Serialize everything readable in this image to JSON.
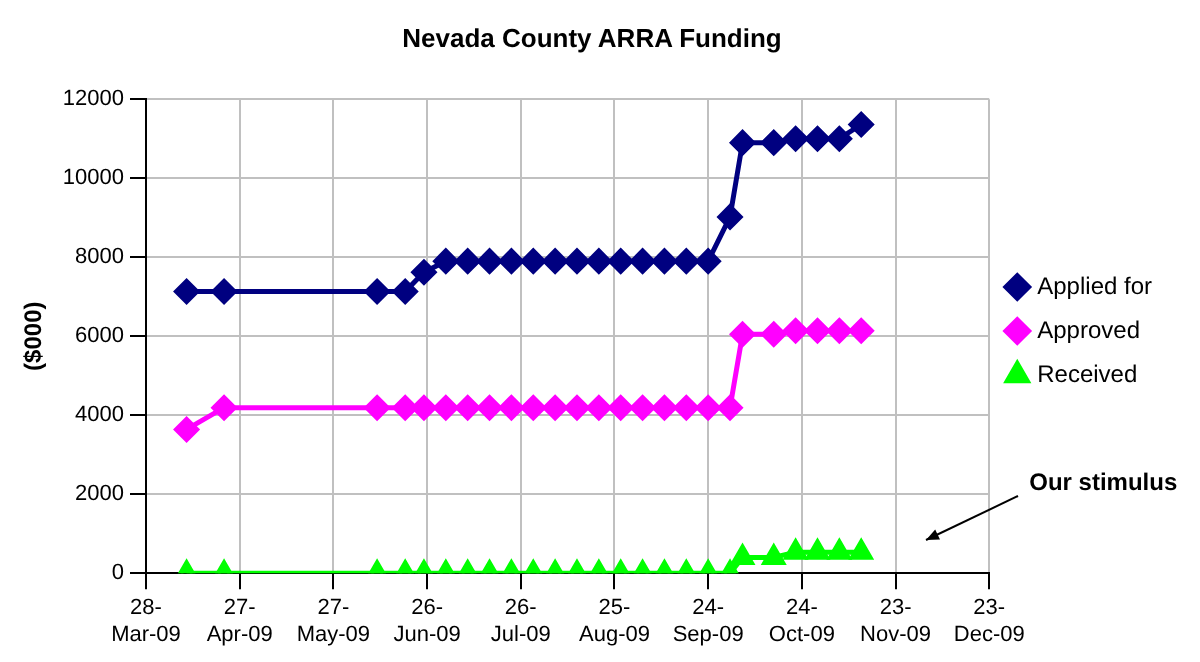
{
  "chart_data": {
    "type": "line",
    "title": "Nevada County ARRA Funding",
    "ylabel": "($000)",
    "x": [
      "2009-04-10",
      "2009-04-22",
      "2009-06-10",
      "2009-06-19",
      "2009-06-25",
      "2009-07-02",
      "2009-07-09",
      "2009-07-16",
      "2009-07-23",
      "2009-07-30",
      "2009-08-06",
      "2009-08-13",
      "2009-08-20",
      "2009-08-27",
      "2009-09-03",
      "2009-09-10",
      "2009-09-17",
      "2009-09-24",
      "2009-10-01",
      "2009-10-05",
      "2009-10-15",
      "2009-10-22",
      "2009-10-29",
      "2009-11-05",
      "2009-11-12"
    ],
    "series": [
      {
        "name": "Applied for",
        "color": "#000080",
        "marker": "diamond",
        "values": [
          7130,
          7130,
          7130,
          7130,
          7620,
          7900,
          7900,
          7900,
          7900,
          7900,
          7900,
          7900,
          7900,
          7900,
          7900,
          7900,
          7900,
          7900,
          9020,
          10900,
          10900,
          11000,
          11000,
          11000,
          11360
        ]
      },
      {
        "name": "Approved",
        "color": "#ff00ff",
        "marker": "diamond",
        "values": [
          3640,
          4190,
          4190,
          4190,
          4190,
          4190,
          4190,
          4190,
          4190,
          4190,
          4190,
          4190,
          4190,
          4190,
          4190,
          4190,
          4190,
          4190,
          4190,
          6050,
          6050,
          6140,
          6140,
          6140,
          6140
        ]
      },
      {
        "name": "Received",
        "color": "#00ff00",
        "marker": "triangle",
        "values": [
          0,
          0,
          0,
          0,
          0,
          0,
          0,
          0,
          0,
          0,
          0,
          0,
          0,
          0,
          0,
          0,
          0,
          0,
          0,
          400,
          400,
          530,
          530,
          530,
          530
        ]
      }
    ],
    "xlim": [
      "2009-03-28",
      "2009-12-23"
    ],
    "xticks": [
      {
        "value": "2009-03-28",
        "label": "28-Mar-09"
      },
      {
        "value": "2009-04-27",
        "label": "27-Apr-09"
      },
      {
        "value": "2009-05-27",
        "label": "27-May-09"
      },
      {
        "value": "2009-06-26",
        "label": "26-Jun-09"
      },
      {
        "value": "2009-07-26",
        "label": "26-Jul-09"
      },
      {
        "value": "2009-08-25",
        "label": "25-Aug-09"
      },
      {
        "value": "2009-09-24",
        "label": "24-Sep-09"
      },
      {
        "value": "2009-10-24",
        "label": "24-Oct-09"
      },
      {
        "value": "2009-11-23",
        "label": "23-Nov-09"
      },
      {
        "value": "2009-12-23",
        "label": "23-Dec-09"
      }
    ],
    "ylim": [
      0,
      12000
    ],
    "yticks": [
      0,
      2000,
      4000,
      6000,
      8000,
      10000,
      12000
    ],
    "grid": true,
    "legend": "right",
    "line_style": "solid",
    "annotations": [
      "Our stimulus"
    ]
  }
}
